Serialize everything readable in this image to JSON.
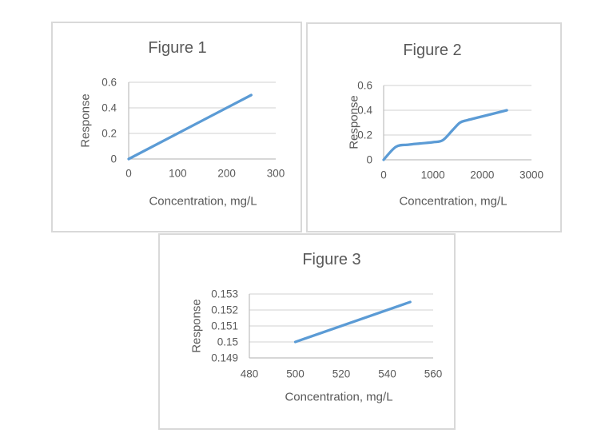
{
  "style": {
    "line_color": "#5B9BD5",
    "grid_color": "#d9d9d9",
    "axis_color": "#bfbfbf",
    "text_color": "#595959",
    "panel_border_color": "#d9d9d9",
    "background": "#ffffff"
  },
  "chart_data": [
    {
      "type": "line",
      "title": "Figure 1",
      "xlabel": "Concentration, mg/L",
      "ylabel": "Response",
      "xlim": [
        0,
        300
      ],
      "ylim": [
        0,
        0.6
      ],
      "x_tick_labels": [
        "0",
        "100",
        "200",
        "300"
      ],
      "y_tick_labels": [
        "0",
        "0.2",
        "0.4",
        "0.6"
      ],
      "grid": true,
      "legend": null,
      "smooth": false,
      "series": [
        {
          "name": "Response",
          "x": [
            0,
            250
          ],
          "y": [
            0,
            0.5
          ]
        }
      ]
    },
    {
      "type": "line",
      "title": "Figure 2",
      "xlabel": "Concentration, mg/L",
      "ylabel": "Response",
      "xlim": [
        0,
        3000
      ],
      "ylim": [
        0,
        0.6
      ],
      "x_tick_labels": [
        "0",
        "1000",
        "2000",
        "3000"
      ],
      "y_tick_labels": [
        "0",
        "0.2",
        "0.4",
        "0.6"
      ],
      "grid": true,
      "legend": null,
      "smooth": true,
      "series": [
        {
          "name": "Response",
          "x": [
            0,
            250,
            500,
            750,
            1000,
            1200,
            1400,
            1550,
            1700,
            2000,
            2500
          ],
          "y": [
            0,
            0.105,
            0.122,
            0.132,
            0.142,
            0.158,
            0.24,
            0.3,
            0.32,
            0.35,
            0.4
          ]
        }
      ]
    },
    {
      "type": "line",
      "title": "Figure 3",
      "xlabel": "Concentration, mg/L",
      "ylabel": "Response",
      "xlim": [
        480,
        560
      ],
      "ylim": [
        0.149,
        0.153
      ],
      "x_tick_labels": [
        "480",
        "500",
        "520",
        "540",
        "560"
      ],
      "y_tick_labels": [
        "0.149",
        "0.15",
        "0.151",
        "0.152",
        "0.153"
      ],
      "grid": true,
      "legend": null,
      "smooth": false,
      "series": [
        {
          "name": "Response",
          "x": [
            500,
            550
          ],
          "y": [
            0.15,
            0.1525
          ]
        }
      ]
    }
  ]
}
